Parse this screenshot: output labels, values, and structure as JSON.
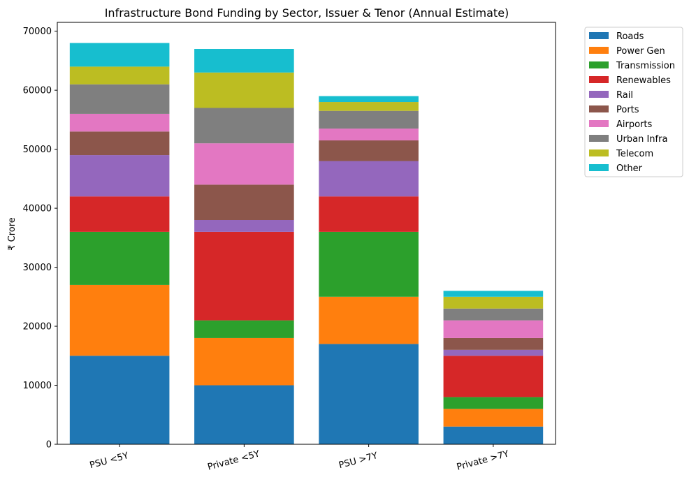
{
  "chart_data": {
    "type": "bar",
    "stacked": true,
    "title": "Infrastructure Bond Funding by Sector, Issuer & Tenor (Annual Estimate)",
    "xlabel": "",
    "ylabel": "₹ Crore",
    "ylim": [
      0,
      71500
    ],
    "yticks": [
      0,
      10000,
      20000,
      30000,
      40000,
      50000,
      60000,
      70000
    ],
    "ytick_labels": [
      "0",
      "10000",
      "20000",
      "30000",
      "40000",
      "50000",
      "60000",
      "70000"
    ],
    "categories": [
      "PSU <5Y",
      "Private <5Y",
      "PSU >7Y",
      "Private >7Y"
    ],
    "legend_position": "outside-top-right",
    "series": [
      {
        "name": "Roads",
        "color": "#1f77b4",
        "values": [
          15000,
          10000,
          17000,
          3000
        ]
      },
      {
        "name": "Power Gen",
        "color": "#ff7f0e",
        "values": [
          12000,
          8000,
          8000,
          3000
        ]
      },
      {
        "name": "Transmission",
        "color": "#2ca02c",
        "values": [
          9000,
          3000,
          11000,
          2000
        ]
      },
      {
        "name": "Renewables",
        "color": "#d62728",
        "values": [
          6000,
          15000,
          6000,
          7000
        ]
      },
      {
        "name": "Rail",
        "color": "#9467bd",
        "values": [
          7000,
          2000,
          6000,
          1000
        ]
      },
      {
        "name": "Ports",
        "color": "#8c564b",
        "values": [
          4000,
          6000,
          3500,
          2000
        ]
      },
      {
        "name": "Airports",
        "color": "#e377c2",
        "values": [
          3000,
          7000,
          2000,
          3000
        ]
      },
      {
        "name": "Urban Infra",
        "color": "#7f7f7f",
        "values": [
          5000,
          6000,
          3000,
          2000
        ]
      },
      {
        "name": "Telecom",
        "color": "#bcbd22",
        "values": [
          3000,
          6000,
          1500,
          2000
        ]
      },
      {
        "name": "Other",
        "color": "#17becf",
        "values": [
          4000,
          4000,
          1000,
          1000
        ]
      }
    ]
  }
}
